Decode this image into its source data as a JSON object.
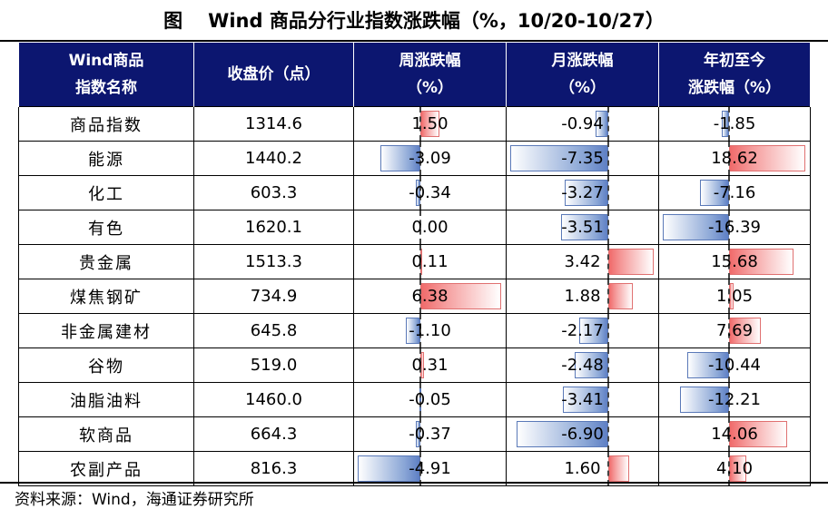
{
  "title": {
    "label": "图",
    "text": "Wind 商品分行业指数涨跌幅（%，10/20-10/27）"
  },
  "table": {
    "headers": [
      [
        "Wind商品",
        "指数名称"
      ],
      [
        "收盘价（点）"
      ],
      [
        "周涨跌幅",
        "（%）"
      ],
      [
        "月涨跌幅",
        "（%）"
      ],
      [
        "年初至今",
        "涨跌幅（%）"
      ]
    ],
    "rows": [
      {
        "name": "商品指数",
        "close": "1314.6",
        "week": "1.50",
        "month": "-0.94",
        "ytd": "-1.85"
      },
      {
        "name": "能源",
        "close": "1440.2",
        "week": "-3.09",
        "month": "-7.35",
        "ytd": "18.62"
      },
      {
        "name": "化工",
        "close": "603.3",
        "week": "-0.34",
        "month": "-3.27",
        "ytd": "-7.16"
      },
      {
        "name": "有色",
        "close": "1620.1",
        "week": "0.00",
        "month": "-3.51",
        "ytd": "-16.39"
      },
      {
        "name": "贵金属",
        "close": "1513.3",
        "week": "0.11",
        "month": "3.42",
        "ytd": "15.68"
      },
      {
        "name": "煤焦钢矿",
        "close": "734.9",
        "week": "6.38",
        "month": "1.88",
        "ytd": "1.05"
      },
      {
        "name": "非金属建材",
        "close": "645.8",
        "week": "-1.10",
        "month": "-2.17",
        "ytd": "7.69"
      },
      {
        "name": "谷物",
        "close": "519.0",
        "week": "0.31",
        "month": "-2.48",
        "ytd": "-10.44"
      },
      {
        "name": "油脂油料",
        "close": "1460.0",
        "week": "-0.05",
        "month": "-3.41",
        "ytd": "-12.21"
      },
      {
        "name": "软商品",
        "close": "664.3",
        "week": "-0.37",
        "month": "-6.90",
        "ytd": "14.06"
      },
      {
        "name": "农副产品",
        "close": "816.3",
        "week": "-4.91",
        "month": "1.60",
        "ytd": "4.10"
      }
    ]
  },
  "bar_scale": {
    "week": {
      "min": -4.91,
      "max": 6.38
    },
    "month": {
      "min": -7.35,
      "max": 3.42
    },
    "ytd": {
      "min": -16.39,
      "max": 18.62
    }
  },
  "colors": {
    "header_bg": "#0c1670",
    "negative": "#5e7fc4",
    "positive": "#f06a6a"
  },
  "source": "资料来源：Wind，海通证券研究所"
}
